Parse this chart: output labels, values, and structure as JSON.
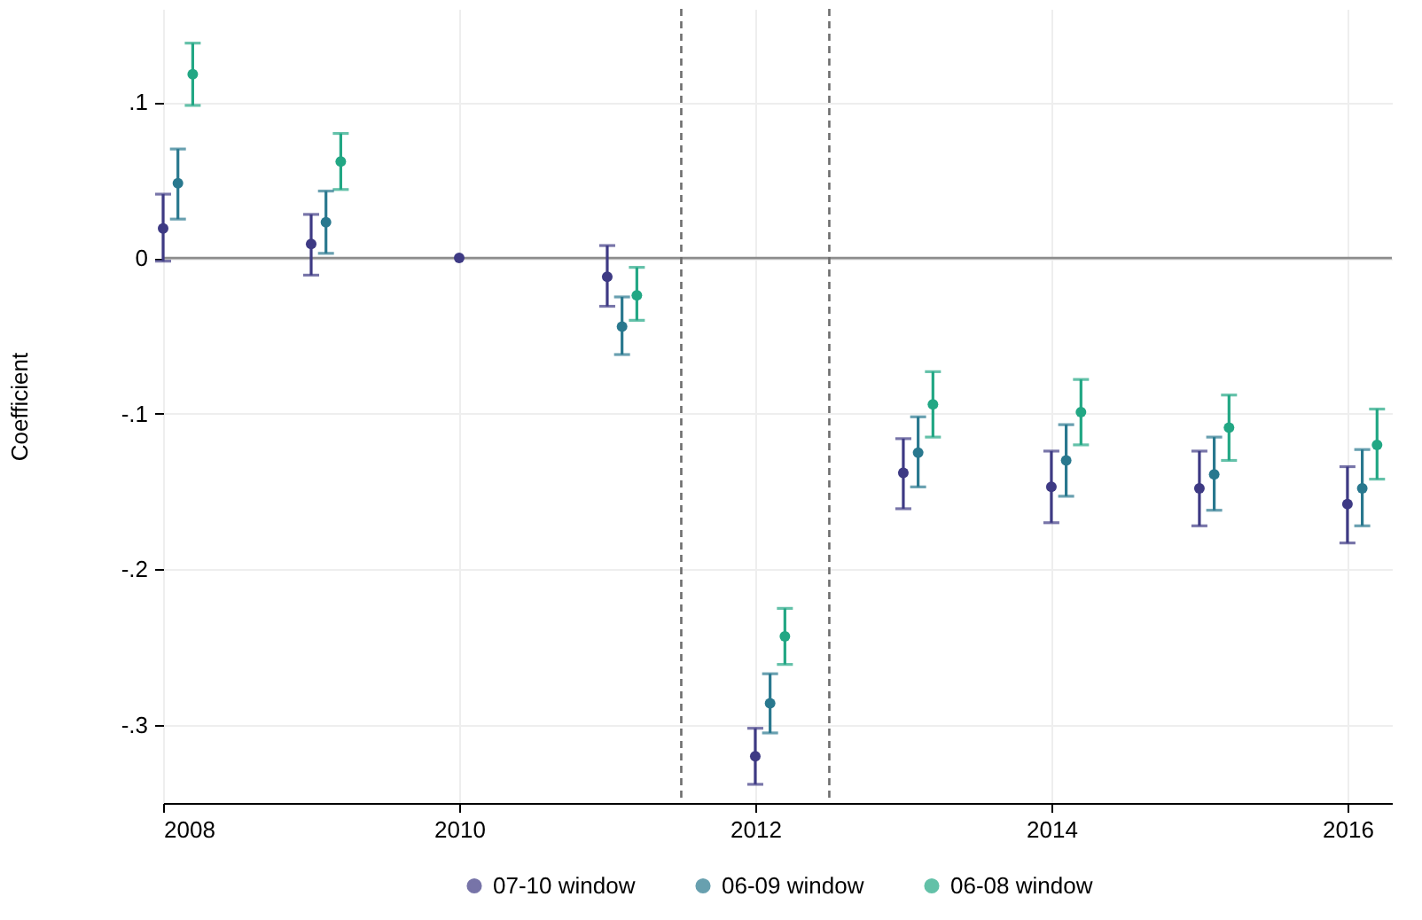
{
  "chart_data": {
    "type": "scatter",
    "ylabel": "Coefficient",
    "xlim": [
      2008,
      2016.3
    ],
    "xticks": [
      2008,
      2010,
      2012,
      2014,
      2016
    ],
    "ylim": [
      -0.35,
      0.16
    ],
    "yticks": [
      {
        "value": 0.1,
        "label": ".1"
      },
      {
        "value": 0,
        "label": "0"
      },
      {
        "value": -0.1,
        "label": "-.1"
      },
      {
        "value": -0.2,
        "label": "-.2"
      },
      {
        "value": -0.3,
        "label": "-.3"
      }
    ],
    "grid": true,
    "legend": "bottom",
    "marker": "circle",
    "ref_lines": [
      {
        "axis": "y",
        "value": 0,
        "color": "#8c8c8c",
        "line_style": "solid"
      },
      {
        "axis": "x",
        "value": 2011.5,
        "color": "#6e6e6e",
        "line_style": "dashed"
      },
      {
        "axis": "x",
        "value": 2012.5,
        "color": "#6e6e6e",
        "line_style": "dashed"
      }
    ],
    "series": [
      {
        "name": "07-10 window",
        "color": "#3e3a84",
        "x": [
          2008,
          2009,
          2010,
          2011,
          2012,
          2013,
          2014,
          2015,
          2016
        ],
        "values": [
          0.019,
          0.009,
          0,
          -0.012,
          -0.32,
          -0.138,
          -0.147,
          -0.148,
          -0.158
        ],
        "errors": [
          [
            -0.002,
            0.041
          ],
          [
            -0.011,
            0.028
          ],
          null,
          [
            -0.031,
            0.008
          ],
          [
            -0.338,
            -0.302
          ],
          [
            -0.161,
            -0.116
          ],
          [
            -0.17,
            -0.124
          ],
          [
            -0.172,
            -0.124
          ],
          [
            -0.183,
            -0.134
          ]
        ]
      },
      {
        "name": "06-09 window",
        "color": "#29788e",
        "x": [
          2008.1,
          2009.1,
          2011.1,
          2012.1,
          2013.1,
          2014.1,
          2015.1,
          2016.1
        ],
        "values": [
          0.048,
          0.023,
          -0.044,
          -0.286,
          -0.125,
          -0.13,
          -0.139,
          -0.148
        ],
        "errors": [
          [
            0.025,
            0.07
          ],
          [
            0.003,
            0.043
          ],
          [
            -0.062,
            -0.025
          ],
          [
            -0.305,
            -0.267
          ],
          [
            -0.147,
            -0.102
          ],
          [
            -0.153,
            -0.107
          ],
          [
            -0.162,
            -0.115
          ],
          [
            -0.172,
            -0.123
          ]
        ]
      },
      {
        "name": "06-08 window",
        "color": "#22a784",
        "x": [
          2008.2,
          2009.2,
          2011.2,
          2012.2,
          2013.2,
          2014.2,
          2015.2,
          2016.2
        ],
        "values": [
          0.118,
          0.062,
          -0.024,
          -0.243,
          -0.094,
          -0.099,
          -0.109,
          -0.12
        ],
        "errors": [
          [
            0.098,
            0.138
          ],
          [
            0.044,
            0.08
          ],
          [
            -0.04,
            -0.006
          ],
          [
            -0.261,
            -0.225
          ],
          [
            -0.115,
            -0.073
          ],
          [
            -0.12,
            -0.078
          ],
          [
            -0.13,
            -0.088
          ],
          [
            -0.142,
            -0.097
          ]
        ]
      }
    ]
  }
}
